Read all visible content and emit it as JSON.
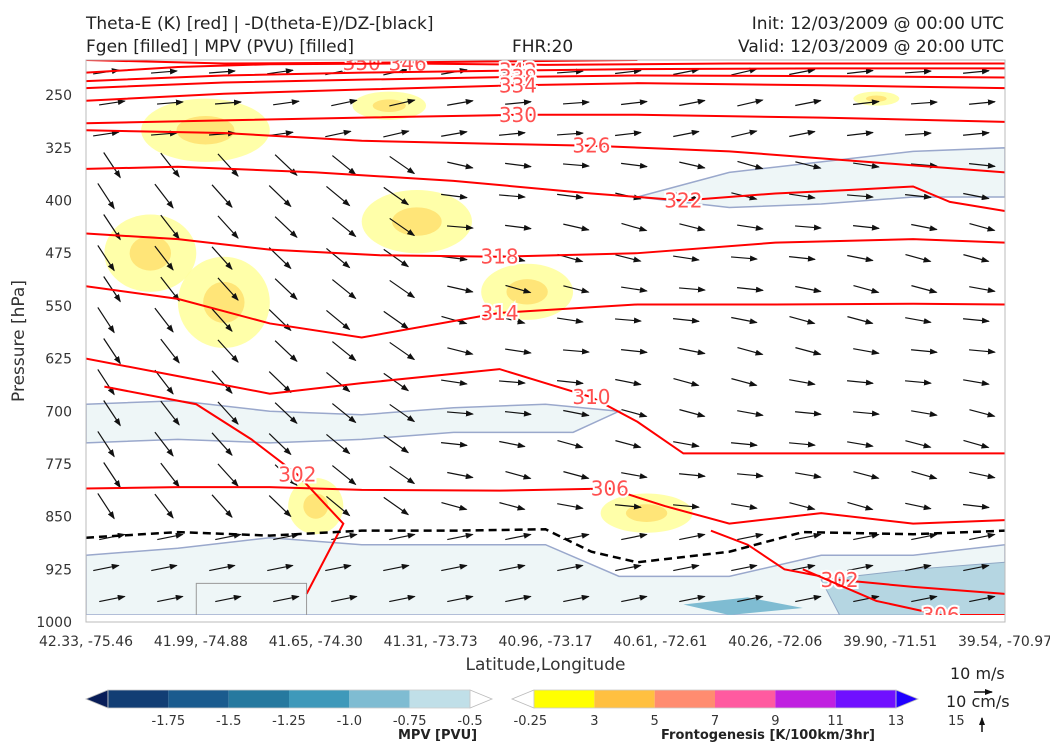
{
  "header": {
    "line1_left": "Theta-E (K) [red] | -D(theta-E)/DZ-[black]",
    "line2_left": "Fgen [filled] | MPV (PVU) [filled]",
    "fhr": "FHR:20",
    "init": "Init: 12/03/2009 @ 00:00 UTC",
    "valid": "Valid: 12/03/2009 @ 20:00 UTC"
  },
  "chart_data": {
    "type": "cross-section",
    "xlabel": "Latitude,Longitude",
    "ylabel": "Pressure [hPa]",
    "x_ticks": [
      "42.33, -75.46",
      "41.99, -74.88",
      "41.65, -74.30",
      "41.31, -73.73",
      "40.96, -73.17",
      "40.61, -72.61",
      "40.26, -72.06",
      "39.90, -71.51",
      "39.54, -70.97"
    ],
    "y_ticks": [
      250,
      325,
      400,
      475,
      550,
      625,
      700,
      775,
      850,
      925,
      1000
    ],
    "ylim": [
      1000,
      200
    ],
    "theta_e_contours": [
      {
        "label": "350",
        "points": [
          [
            0,
            200
          ],
          [
            0.15,
            205
          ],
          [
            0.3,
            204
          ],
          [
            0.45,
            202
          ],
          [
            0.6,
            200
          ]
        ]
      },
      {
        "label": "346",
        "points": [
          [
            0,
            218
          ],
          [
            0.1,
            210
          ],
          [
            0.2,
            206
          ],
          [
            0.35,
            205
          ],
          [
            0.5,
            207
          ],
          [
            0.7,
            205
          ],
          [
            1.0,
            205
          ]
        ]
      },
      {
        "label": "342",
        "points": [
          [
            0,
            230
          ],
          [
            0.15,
            222
          ],
          [
            0.3,
            218
          ],
          [
            0.47,
            215
          ],
          [
            0.6,
            213
          ],
          [
            0.8,
            212
          ],
          [
            1.0,
            212
          ]
        ]
      },
      {
        "label": "338",
        "points": [
          [
            0,
            240
          ],
          [
            0.15,
            232
          ],
          [
            0.3,
            228
          ],
          [
            0.47,
            224
          ],
          [
            0.6,
            222
          ],
          [
            0.8,
            223
          ],
          [
            1.0,
            225
          ]
        ]
      },
      {
        "label": "334",
        "points": [
          [
            0,
            258
          ],
          [
            0.15,
            248
          ],
          [
            0.3,
            242
          ],
          [
            0.47,
            236
          ],
          [
            0.6,
            233
          ],
          [
            0.8,
            236
          ],
          [
            1.0,
            240
          ]
        ]
      },
      {
        "label": "330",
        "points": [
          [
            0,
            290
          ],
          [
            0.15,
            286
          ],
          [
            0.3,
            282
          ],
          [
            0.47,
            278
          ],
          [
            0.6,
            278
          ],
          [
            0.8,
            282
          ],
          [
            1.0,
            288
          ]
        ]
      },
      {
        "label": "326",
        "points": [
          [
            0,
            300
          ],
          [
            0.15,
            304
          ],
          [
            0.3,
            315
          ],
          [
            0.47,
            320
          ],
          [
            0.55,
            322
          ],
          [
            0.7,
            330
          ],
          [
            0.85,
            345
          ],
          [
            1.0,
            360
          ]
        ]
      },
      {
        "label": "322",
        "points": [
          [
            0,
            355
          ],
          [
            0.1,
            352
          ],
          [
            0.25,
            360
          ],
          [
            0.4,
            372
          ],
          [
            0.55,
            390
          ],
          [
            0.65,
            400
          ],
          [
            0.75,
            390
          ],
          [
            0.83,
            385
          ],
          [
            0.9,
            380
          ],
          [
            0.94,
            402
          ],
          [
            1.0,
            415
          ]
        ]
      },
      {
        "label": "318",
        "points": [
          [
            0,
            447
          ],
          [
            0.1,
            455
          ],
          [
            0.2,
            470
          ],
          [
            0.32,
            478
          ],
          [
            0.45,
            480
          ],
          [
            0.6,
            475
          ],
          [
            0.75,
            460
          ],
          [
            0.9,
            455
          ],
          [
            1.0,
            460
          ]
        ]
      },
      {
        "label": "314",
        "points": [
          [
            0,
            522
          ],
          [
            0.1,
            540
          ],
          [
            0.2,
            575
          ],
          [
            0.3,
            595
          ],
          [
            0.45,
            560
          ],
          [
            0.6,
            548
          ],
          [
            0.75,
            548
          ],
          [
            0.9,
            547
          ],
          [
            1.0,
            548
          ]
        ]
      },
      {
        "label": "310",
        "points": [
          [
            0,
            625
          ],
          [
            0.1,
            650
          ],
          [
            0.2,
            675
          ],
          [
            0.3,
            660
          ],
          [
            0.45,
            640
          ],
          [
            0.55,
            680
          ],
          [
            0.6,
            715
          ],
          [
            0.65,
            760
          ],
          [
            0.75,
            760
          ],
          [
            0.9,
            760
          ],
          [
            1.0,
            760
          ]
        ]
      },
      {
        "label": "306",
        "points": [
          [
            0,
            810
          ],
          [
            0.1,
            808
          ],
          [
            0.2,
            808
          ],
          [
            0.3,
            812
          ],
          [
            0.45,
            813
          ],
          [
            0.57,
            810
          ],
          [
            0.63,
            835
          ],
          [
            0.7,
            860
          ],
          [
            0.8,
            845
          ],
          [
            0.9,
            860
          ],
          [
            1.0,
            855
          ]
        ]
      },
      {
        "label": "302",
        "points": [
          [
            0.02,
            665
          ],
          [
            0.12,
            690
          ],
          [
            0.18,
            740
          ],
          [
            0.23,
            790
          ],
          [
            0.28,
            860
          ],
          [
            0.24,
            960
          ]
        ]
      },
      {
        "label": "302",
        "points": [
          [
            0.68,
            870
          ],
          [
            0.72,
            890
          ],
          [
            0.76,
            925
          ],
          [
            0.82,
            940
          ],
          [
            0.9,
            950
          ],
          [
            1.0,
            960
          ]
        ]
      },
      {
        "label": "306",
        "points": [
          [
            0.78,
            925
          ],
          [
            0.86,
            970
          ],
          [
            0.93,
            990
          ],
          [
            1.0,
            990
          ]
        ]
      }
    ],
    "stability_line": [
      [
        0,
        880
      ],
      [
        0.1,
        872
      ],
      [
        0.2,
        877
      ],
      [
        0.3,
        870
      ],
      [
        0.4,
        870
      ],
      [
        0.5,
        868
      ],
      [
        0.55,
        900
      ],
      [
        0.6,
        915
      ],
      [
        0.7,
        900
      ],
      [
        0.78,
        872
      ],
      [
        0.9,
        875
      ],
      [
        1.0,
        870
      ]
    ],
    "frontogenesis_blobs": [
      {
        "cx": 0.13,
        "cy": 300,
        "rx": 0.07,
        "ry": 45
      },
      {
        "cx": 0.07,
        "cy": 475,
        "rx": 0.05,
        "ry": 55
      },
      {
        "cx": 0.15,
        "cy": 545,
        "rx": 0.05,
        "ry": 65
      },
      {
        "cx": 0.36,
        "cy": 430,
        "rx": 0.06,
        "ry": 45
      },
      {
        "cx": 0.48,
        "cy": 530,
        "rx": 0.05,
        "ry": 40
      },
      {
        "cx": 0.25,
        "cy": 835,
        "rx": 0.03,
        "ry": 40
      },
      {
        "cx": 0.61,
        "cy": 845,
        "rx": 0.05,
        "ry": 28
      },
      {
        "cx": 0.33,
        "cy": 265,
        "rx": 0.04,
        "ry": 20
      },
      {
        "cx": 0.86,
        "cy": 255,
        "rx": 0.025,
        "ry": 10
      }
    ],
    "mpv_regions": [
      {
        "points": [
          [
            0,
            690
          ],
          [
            0.1,
            685
          ],
          [
            0.2,
            700
          ],
          [
            0.3,
            705
          ],
          [
            0.4,
            695
          ],
          [
            0.5,
            690
          ],
          [
            0.58,
            700
          ],
          [
            0.53,
            730
          ],
          [
            0.4,
            730
          ],
          [
            0.3,
            740
          ],
          [
            0.2,
            745
          ],
          [
            0.1,
            740
          ],
          [
            0,
            745
          ]
        ]
      },
      {
        "points": [
          [
            0.6,
            395
          ],
          [
            0.7,
            360
          ],
          [
            0.8,
            345
          ],
          [
            0.9,
            330
          ],
          [
            1.0,
            325
          ],
          [
            1.0,
            395
          ],
          [
            0.9,
            395
          ],
          [
            0.8,
            405
          ],
          [
            0.7,
            410
          ]
        ]
      },
      {
        "points": [
          [
            0,
            905
          ],
          [
            0.1,
            895
          ],
          [
            0.2,
            880
          ],
          [
            0.3,
            890
          ],
          [
            0.4,
            890
          ],
          [
            0.5,
            890
          ],
          [
            0.58,
            935
          ],
          [
            0.7,
            935
          ],
          [
            0.8,
            905
          ],
          [
            0.9,
            905
          ],
          [
            1.0,
            890
          ],
          [
            1.0,
            990
          ],
          [
            0,
            990
          ]
        ]
      }
    ],
    "mpv_colorbar": {
      "label": "MPV [PVU]",
      "ticks": [
        "-1.75",
        "-1.5",
        "-1.25",
        "-1.0",
        "-0.75",
        "-0.5",
        "-0.25"
      ],
      "colors": [
        "#081d58",
        "#123e74",
        "#1a5b8e",
        "#26799f",
        "#3f99ba",
        "#7fbcd2",
        "#c0dfe8",
        "#ffffff"
      ]
    },
    "fgen_colorbar": {
      "label": "Frontogenesis [K/100km/3hr]",
      "ticks": [
        "3",
        "5",
        "7",
        "9",
        "11",
        "13",
        "15"
      ],
      "colors": [
        "#ffffff",
        "#ffff00",
        "#ffc040",
        "#ff8c70",
        "#ff5aa0",
        "#c020e0",
        "#7010ff",
        "#2000ff"
      ]
    },
    "wind_reference": {
      "horizontal": "10 m/s",
      "vertical": "10 cm/s"
    }
  }
}
